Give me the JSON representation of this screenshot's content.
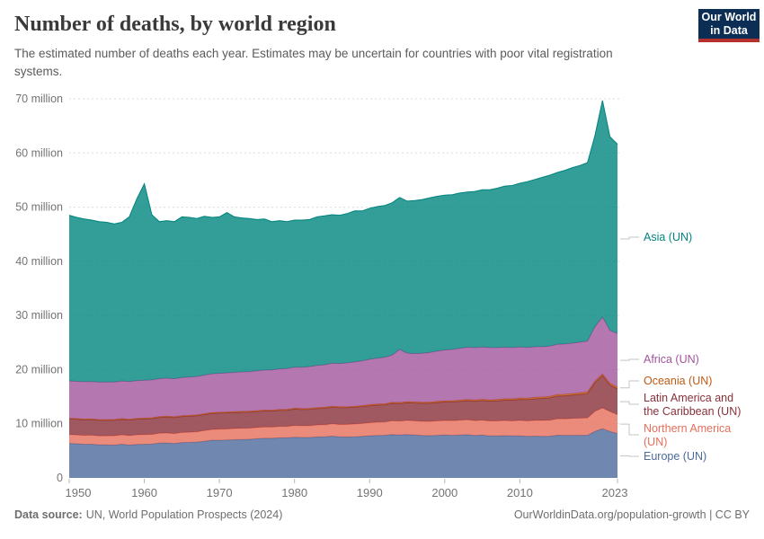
{
  "header": {
    "logo": {
      "line1": "Our World",
      "line2": "in Data",
      "bg_color": "#0d2e54",
      "bar_color": "#b5312d"
    }
  },
  "footer": {
    "source_label": "Data source:",
    "source_text": "UN, World Population Prospects (2024)",
    "credit": "OurWorldinData.org/population-growth | CC BY"
  },
  "chart_data": {
    "type": "area",
    "stacked": true,
    "title": "Number of deaths, by world region",
    "subtitle": "The estimated number of deaths each year. Estimates may be uncertain for countries with poor vital registration systems.",
    "xlabel": "",
    "ylabel": "",
    "unit": "deaths per year (millions)",
    "grid": "horizontal dashed",
    "legend_position": "right",
    "ylim": [
      0,
      70
    ],
    "x": {
      "start": 1950,
      "end": 2023,
      "step": 1
    },
    "x_ticks": [
      1950,
      1960,
      1970,
      1980,
      1990,
      2000,
      2010,
      2023
    ],
    "y_ticks": [
      {
        "value": 0,
        "label": "0"
      },
      {
        "value": 10,
        "label": "10 million"
      },
      {
        "value": 20,
        "label": "20 million"
      },
      {
        "value": 30,
        "label": "30 million"
      },
      {
        "value": 40,
        "label": "40 million"
      },
      {
        "value": 50,
        "label": "50 million"
      },
      {
        "value": 60,
        "label": "60 million"
      },
      {
        "value": 70,
        "label": "70 million"
      }
    ],
    "series": [
      {
        "name": "Europe (UN)",
        "color": "#4C6A9C",
        "values": [
          6.37,
          6.3,
          6.21,
          6.22,
          6.08,
          6.08,
          6.06,
          6.22,
          6.06,
          6.19,
          6.2,
          6.23,
          6.42,
          6.45,
          6.34,
          6.53,
          6.55,
          6.62,
          6.77,
          6.96,
          6.95,
          7.0,
          7.05,
          7.1,
          7.14,
          7.24,
          7.32,
          7.31,
          7.4,
          7.4,
          7.52,
          7.46,
          7.46,
          7.57,
          7.58,
          7.72,
          7.58,
          7.57,
          7.59,
          7.66,
          7.78,
          7.85,
          7.87,
          8.0,
          7.92,
          8.02,
          7.93,
          7.84,
          7.8,
          7.86,
          7.92,
          7.86,
          7.92,
          7.98,
          7.85,
          7.89,
          7.76,
          7.77,
          7.79,
          7.76,
          7.76,
          7.66,
          7.71,
          7.67,
          7.7,
          7.88,
          7.83,
          7.86,
          7.87,
          7.87,
          8.58,
          9.09,
          8.59,
          8.17
        ]
      },
      {
        "name": "Northern America (UN)",
        "color": "#E56E5A",
        "values": [
          1.63,
          1.65,
          1.66,
          1.68,
          1.69,
          1.7,
          1.72,
          1.74,
          1.75,
          1.77,
          1.79,
          1.8,
          1.83,
          1.85,
          1.86,
          1.87,
          1.9,
          1.91,
          1.97,
          1.98,
          2.05,
          2.04,
          2.07,
          2.07,
          2.05,
          2.07,
          2.08,
          2.08,
          2.11,
          2.1,
          2.17,
          2.16,
          2.18,
          2.21,
          2.23,
          2.27,
          2.29,
          2.31,
          2.36,
          2.39,
          2.42,
          2.44,
          2.45,
          2.55,
          2.57,
          2.6,
          2.6,
          2.61,
          2.64,
          2.68,
          2.68,
          2.7,
          2.73,
          2.75,
          2.73,
          2.77,
          2.76,
          2.76,
          2.81,
          2.78,
          2.85,
          2.88,
          2.91,
          2.95,
          2.97,
          3.05,
          3.08,
          3.12,
          3.16,
          3.23,
          3.71,
          3.83,
          3.66,
          3.53
        ]
      },
      {
        "name": "Latin America and the Caribbean (UN)",
        "color": "#883039",
        "values": [
          2.89,
          2.88,
          2.87,
          2.87,
          2.86,
          2.86,
          2.86,
          2.86,
          2.87,
          2.89,
          2.92,
          2.92,
          2.93,
          2.94,
          2.94,
          2.95,
          2.95,
          2.95,
          2.96,
          2.96,
          2.97,
          2.97,
          2.96,
          2.96,
          2.95,
          2.95,
          2.96,
          2.96,
          2.98,
          2.99,
          3.01,
          3.02,
          3.03,
          3.04,
          3.05,
          3.06,
          3.08,
          3.09,
          3.11,
          3.12,
          3.14,
          3.16,
          3.18,
          3.21,
          3.24,
          3.27,
          3.3,
          3.33,
          3.36,
          3.4,
          3.43,
          3.47,
          3.5,
          3.54,
          3.58,
          3.62,
          3.67,
          3.72,
          3.77,
          3.82,
          3.88,
          3.94,
          4.0,
          4.06,
          4.12,
          4.18,
          4.25,
          4.32,
          4.39,
          4.46,
          5.31,
          5.95,
          4.9,
          4.76
        ]
      },
      {
        "name": "Oceania (UN)",
        "color": "#BE5915",
        "values": [
          0.13,
          0.13,
          0.13,
          0.13,
          0.14,
          0.14,
          0.14,
          0.14,
          0.14,
          0.14,
          0.14,
          0.14,
          0.15,
          0.15,
          0.15,
          0.15,
          0.15,
          0.15,
          0.16,
          0.16,
          0.16,
          0.16,
          0.16,
          0.16,
          0.16,
          0.16,
          0.16,
          0.16,
          0.17,
          0.17,
          0.17,
          0.17,
          0.17,
          0.17,
          0.18,
          0.18,
          0.18,
          0.18,
          0.18,
          0.19,
          0.19,
          0.19,
          0.19,
          0.19,
          0.2,
          0.2,
          0.2,
          0.2,
          0.2,
          0.21,
          0.21,
          0.21,
          0.22,
          0.22,
          0.22,
          0.23,
          0.23,
          0.23,
          0.24,
          0.24,
          0.25,
          0.25,
          0.26,
          0.26,
          0.27,
          0.27,
          0.28,
          0.28,
          0.29,
          0.3,
          0.3,
          0.3,
          0.31,
          0.32
        ]
      },
      {
        "name": "Africa (UN)",
        "color": "#A2559C",
        "values": [
          6.87,
          6.88,
          6.89,
          6.9,
          6.91,
          6.92,
          6.93,
          6.94,
          6.96,
          6.97,
          6.98,
          6.99,
          7.0,
          7.02,
          7.03,
          7.05,
          7.08,
          7.1,
          7.13,
          7.16,
          7.19,
          7.22,
          7.25,
          7.28,
          7.31,
          7.35,
          7.39,
          7.44,
          7.48,
          7.53,
          7.59,
          7.65,
          7.71,
          7.78,
          7.85,
          7.93,
          8.01,
          8.09,
          8.18,
          8.27,
          8.36,
          8.46,
          8.59,
          8.72,
          9.8,
          8.95,
          8.93,
          9.03,
          9.15,
          9.27,
          9.38,
          9.48,
          9.57,
          9.65,
          9.67,
          9.68,
          9.65,
          9.58,
          9.52,
          9.47,
          9.42,
          9.38,
          9.33,
          9.3,
          9.28,
          9.28,
          9.29,
          9.3,
          9.35,
          9.41,
          10.0,
          10.54,
          9.8,
          9.86
        ]
      },
      {
        "name": "Asia (UN)",
        "color": "#00847E",
        "values": [
          30.61,
          30.26,
          30.04,
          29.8,
          29.62,
          29.5,
          29.19,
          29.3,
          30.42,
          33.54,
          36.27,
          30.52,
          28.97,
          29.09,
          28.98,
          29.65,
          29.47,
          29.17,
          29.31,
          28.88,
          28.88,
          29.61,
          28.71,
          28.43,
          28.29,
          27.93,
          27.89,
          27.35,
          27.36,
          27.11,
          27.14,
          27.14,
          27.15,
          27.43,
          27.51,
          27.44,
          27.36,
          27.56,
          27.88,
          27.67,
          27.91,
          28.0,
          28.02,
          28.13,
          28.05,
          28.06,
          28.24,
          28.39,
          28.55,
          28.58,
          28.58,
          28.58,
          28.66,
          28.66,
          28.85,
          29.01,
          29.13,
          29.44,
          29.77,
          29.93,
          30.24,
          30.59,
          30.89,
          31.26,
          31.56,
          31.74,
          32.07,
          32.42,
          32.64,
          32.93,
          35.3,
          39.99,
          35.74,
          34.96
        ]
      }
    ]
  }
}
